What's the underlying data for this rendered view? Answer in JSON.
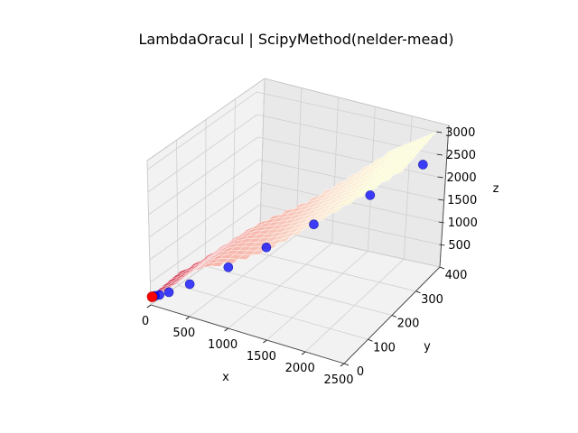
{
  "chart_data": {
    "type": "surface3d",
    "title": "LambdaOracul | ScipyMethod(nelder-mead)",
    "xlabel": "x",
    "ylabel": "y",
    "zlabel": "z",
    "x_ticks": [
      "0",
      "500",
      "1000",
      "1500",
      "2000",
      "2500"
    ],
    "y_ticks": [
      "0",
      "100",
      "200",
      "300",
      "400"
    ],
    "z_ticks": [
      "500",
      "1000",
      "1500",
      "2000",
      "2500",
      "3000"
    ],
    "xlim": [
      0,
      2500
    ],
    "ylim": [
      0,
      400
    ],
    "zlim": [
      0,
      3200
    ],
    "grid": true,
    "surface_colormap": "magma",
    "point_color": "#0000ff",
    "start_point_color": "#ff0000",
    "points": [
      {
        "x": 2300,
        "y": 400,
        "z": 2200
      },
      {
        "x": 1800,
        "y": 330,
        "z": 1700
      },
      {
        "x": 1300,
        "y": 250,
        "z": 1250
      },
      {
        "x": 900,
        "y": 180,
        "z": 900
      },
      {
        "x": 600,
        "y": 120,
        "z": 600
      },
      {
        "x": 300,
        "y": 60,
        "z": 350
      },
      {
        "x": 150,
        "y": 25,
        "z": 250
      },
      {
        "x": 80,
        "y": 10,
        "z": 220
      },
      {
        "x": 40,
        "y": 5,
        "z": 200
      }
    ],
    "start_point": {
      "x": 20,
      "y": 0,
      "z": 190
    }
  }
}
